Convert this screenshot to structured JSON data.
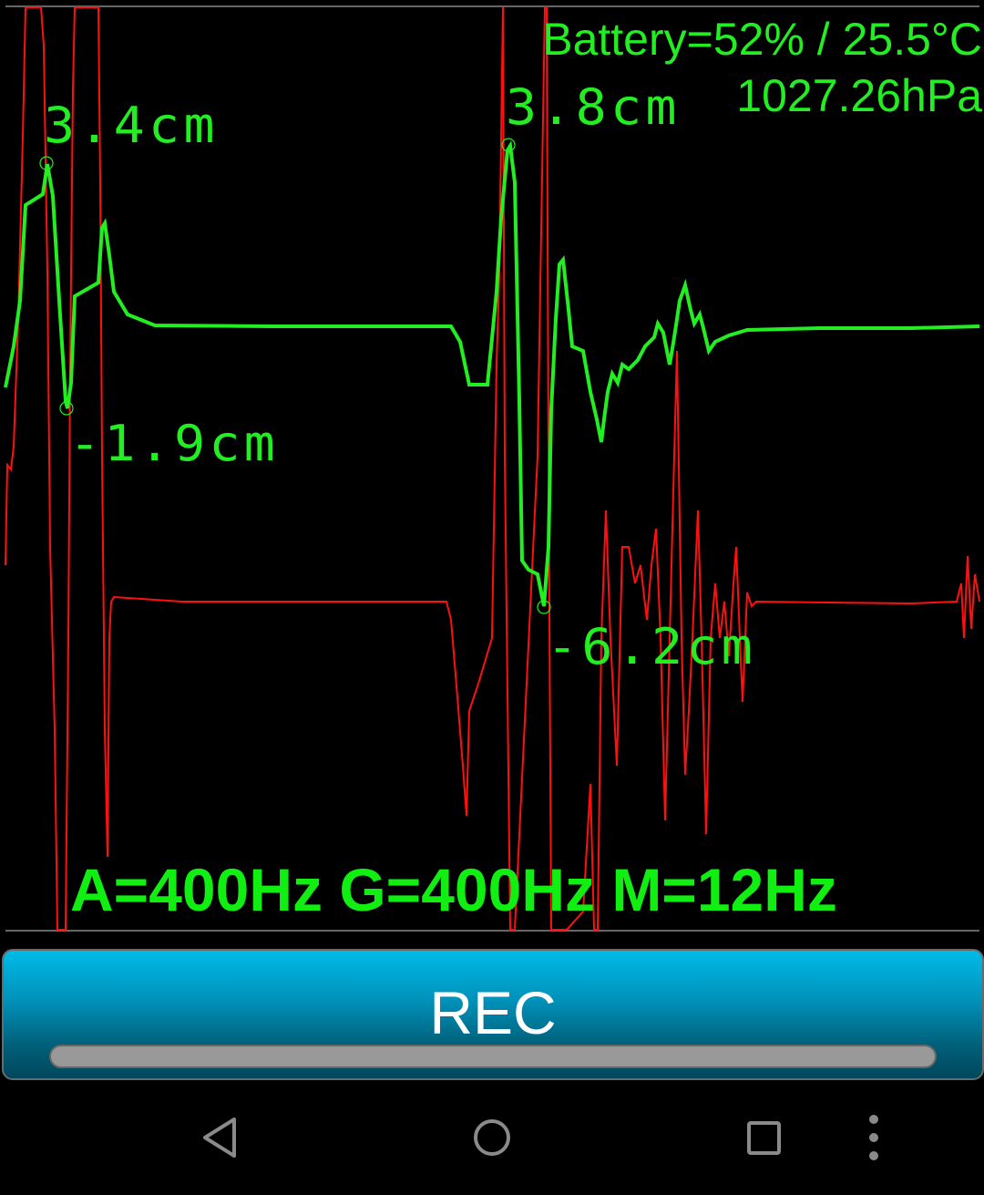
{
  "status": {
    "battery": "Battery=52% / 25.5°C",
    "pressure": "1027.26hPa"
  },
  "peaks": [
    {
      "label": "3.4cm"
    },
    {
      "label": "-1.9cm"
    },
    {
      "label": "3.8cm"
    },
    {
      "label": "-6.2cm"
    }
  ],
  "rates": "A=400Hz G=400Hz M=12Hz",
  "rec_button": {
    "label": "REC",
    "progress": 0
  },
  "colors": {
    "trace_primary": "#22ee22",
    "trace_secondary": "#ff1010",
    "button": "#00b8e6"
  },
  "navbar": {
    "icons": [
      "back-icon",
      "home-icon",
      "recents-icon",
      "overflow-menu-icon"
    ]
  }
}
